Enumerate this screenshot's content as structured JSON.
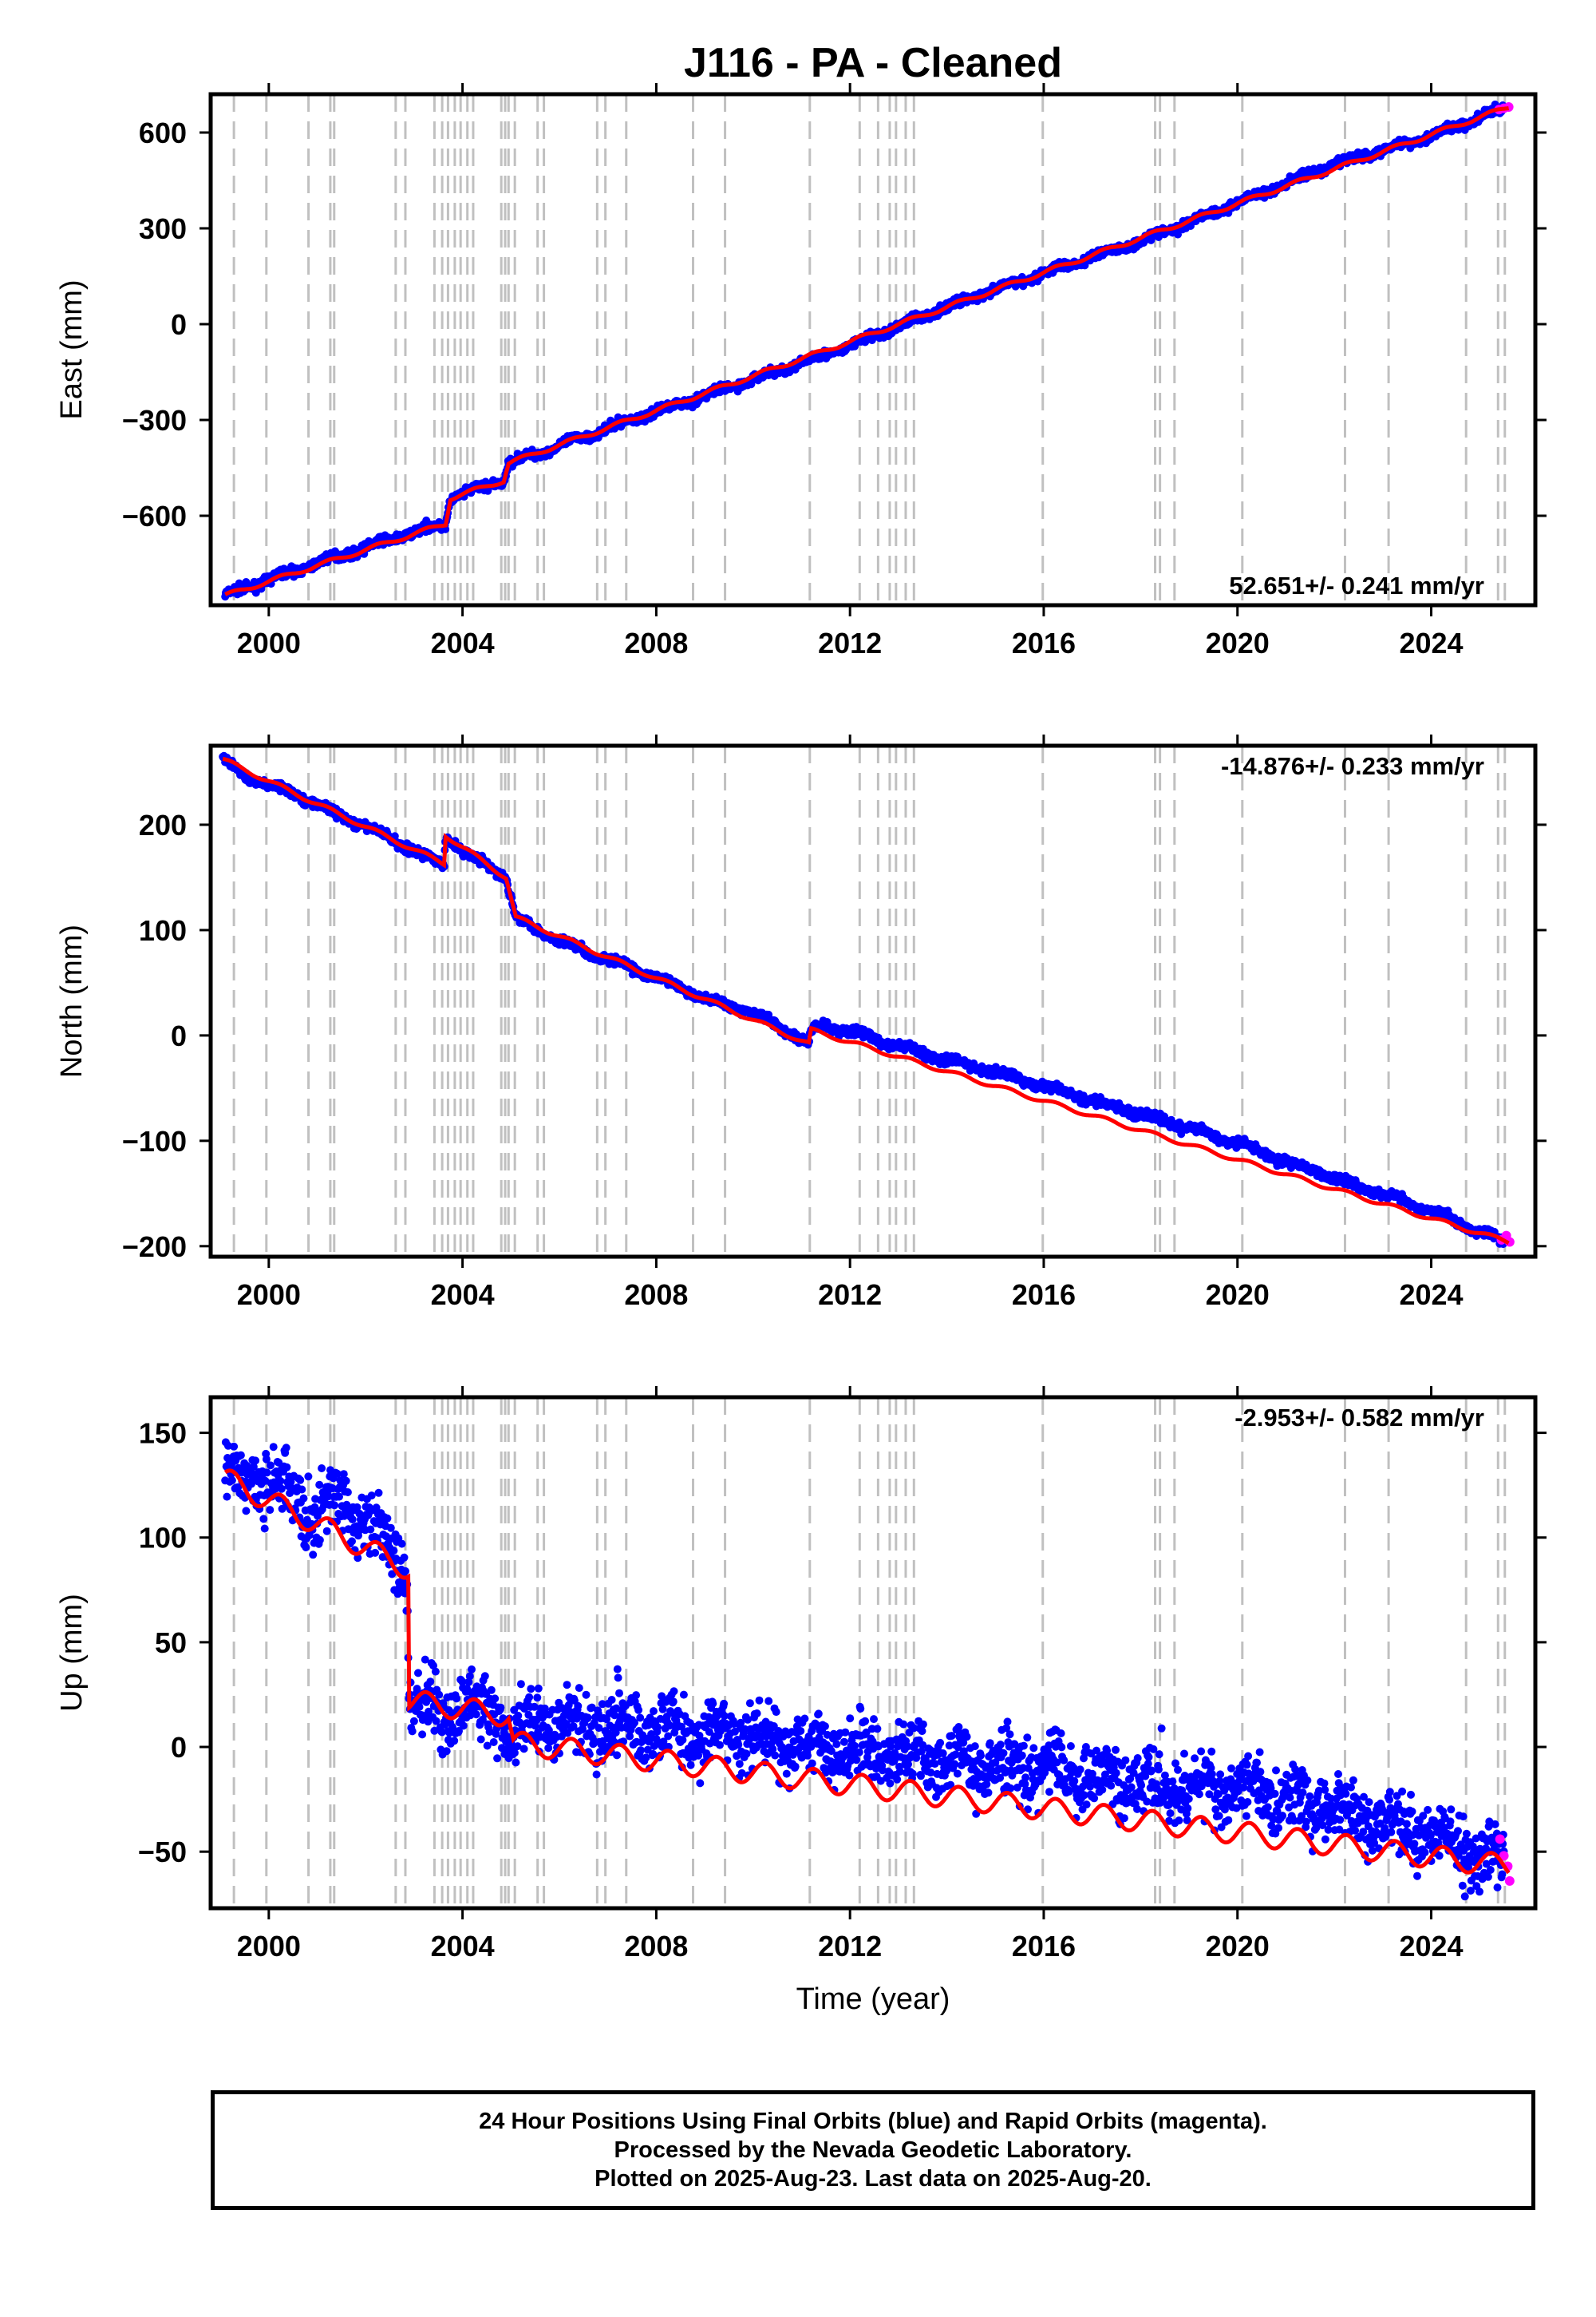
{
  "title": "J116  - PA - Cleaned",
  "colors": {
    "final_orbits": "#0000ff",
    "rapid_orbits": "#ff00ff",
    "model_fit": "#ff0000",
    "event_lines": "#c0c0c0",
    "frame": "#000000"
  },
  "chart_data": [
    {
      "type": "scatter",
      "component": "east",
      "title": "J116  - PA - Cleaned",
      "xlabel": "",
      "ylabel": "East (mm)",
      "xlim": [
        1998.8,
        2026.15
      ],
      "ylim": [
        -880,
        720
      ],
      "xticks": [
        2000,
        2004,
        2008,
        2012,
        2016,
        2020,
        2024
      ],
      "yticks": [
        -600,
        -300,
        0,
        300,
        600
      ],
      "ytick_labels": [
        "−600",
        "−300",
        "0",
        "300",
        "600"
      ],
      "rate_label": "52.651+/- 0.241 mm/yr",
      "rate_position": "bottom-right",
      "series": [
        {
          "color": "#0000ff",
          "marker": "dot",
          "x": [
            1999.1,
            2000.0,
            2001.0,
            2002.0,
            2003.0,
            2003.65,
            2003.75,
            2004.5,
            2004.85,
            2004.95,
            2006.0,
            2008.0,
            2010.0,
            2012.0,
            2014.0,
            2016.0,
            2018.0,
            2020.0,
            2022.0,
            2024.0,
            2025.5
          ],
          "y": [
            -850,
            -800,
            -748,
            -700,
            -650,
            -625,
            -545,
            -505,
            -490,
            -435,
            -380,
            -273,
            -173,
            -68,
            55,
            160,
            260,
            380,
            500,
            590,
            675
          ]
        },
        {
          "color": "#ff00ff",
          "marker": "dot",
          "x": [
            2025.4,
            2025.5,
            2025.6
          ],
          "y": [
            672,
            676,
            680
          ]
        }
      ],
      "fit": {
        "color": "#ff0000",
        "x": [
          1999.1,
          2003.65,
          2003.75,
          2004.85,
          2004.95,
          2025.6
        ],
        "y": [
          -850,
          -625,
          -545,
          -490,
          -435,
          680
        ]
      },
      "events": [
        1999.28,
        1999.95,
        2000.82,
        2001.27,
        2001.35,
        2002.62,
        2002.82,
        2003.42,
        2003.58,
        2003.7,
        2003.84,
        2003.96,
        2004.1,
        2004.22,
        2004.8,
        2004.88,
        2004.95,
        2005.08,
        2005.55,
        2005.68,
        2006.78,
        2006.95,
        2007.38,
        2008.76,
        2009.42,
        2011.17,
        2012.2,
        2012.58,
        2012.82,
        2012.95,
        2013.15,
        2013.32,
        2015.98,
        2018.3,
        2018.4,
        2018.7,
        2020.1,
        2022.22,
        2023.12,
        2024.72,
        2025.38,
        2025.52
      ]
    },
    {
      "type": "scatter",
      "component": "north",
      "xlabel": "",
      "ylabel": "North (mm)",
      "xlim": [
        1998.8,
        2026.15
      ],
      "ylim": [
        -210,
        275
      ],
      "xticks": [
        2000,
        2004,
        2008,
        2012,
        2016,
        2020,
        2024
      ],
      "yticks": [
        -200,
        -100,
        0,
        100,
        200
      ],
      "ytick_labels": [
        "−200",
        "−100",
        "0",
        "100",
        "200"
      ],
      "rate_label": "-14.876+/- 0.233 mm/yr",
      "rate_position": "top-right",
      "series": [
        {
          "color": "#0000ff",
          "marker": "dot",
          "x": [
            1999.05,
            1999.5,
            2000.5,
            2001.5,
            2002.5,
            2003.3,
            2003.62,
            2003.65,
            2004.0,
            2004.5,
            2004.9,
            2005.1,
            2005.5,
            2006.0,
            2007.0,
            2008.0,
            2009.0,
            2010.0,
            2011.15,
            2011.2,
            2011.5,
            2012.0,
            2013.0,
            2014.0,
            2015.0,
            2016.0,
            2017.0,
            2018.0,
            2019.0,
            2020.0,
            2021.0,
            2022.0,
            2023.0,
            2024.0,
            2025.5
          ],
          "y": [
            262,
            246,
            230,
            208,
            188,
            168,
            163,
            190,
            175,
            162,
            150,
            112,
            102,
            90,
            72,
            55,
            35,
            22,
            -8,
            5,
            9,
            4,
            -10,
            -23,
            -35,
            -48,
            -62,
            -75,
            -88,
            -102,
            -120,
            -135,
            -150,
            -167,
            -195
          ]
        },
        {
          "color": "#ff00ff",
          "marker": "dot",
          "x": [
            2025.45,
            2025.55,
            2025.62
          ],
          "y": [
            -194,
            -190,
            -196
          ]
        }
      ],
      "fit": {
        "color": "#ff0000",
        "x": [
          1999.05,
          2003.62,
          2003.65,
          2004.9,
          2005.1,
          2011.15,
          2011.2,
          2025.6
        ],
        "y": [
          262,
          163,
          190,
          150,
          112,
          -8,
          5,
          -196
        ]
      },
      "events": [
        1999.28,
        1999.95,
        2000.82,
        2001.27,
        2001.35,
        2002.62,
        2002.82,
        2003.42,
        2003.58,
        2003.7,
        2003.84,
        2003.96,
        2004.1,
        2004.22,
        2004.8,
        2004.88,
        2004.95,
        2005.08,
        2005.55,
        2005.68,
        2006.78,
        2006.95,
        2007.38,
        2008.76,
        2009.42,
        2011.17,
        2012.2,
        2012.58,
        2012.82,
        2012.95,
        2013.15,
        2013.32,
        2015.98,
        2018.3,
        2018.4,
        2018.7,
        2020.1,
        2022.22,
        2023.12,
        2024.72,
        2025.38,
        2025.52
      ]
    },
    {
      "type": "scatter",
      "component": "up",
      "xlabel": "Time (year)",
      "ylabel": "Up (mm)",
      "xlim": [
        1998.8,
        2026.15
      ],
      "ylim": [
        -77,
        167
      ],
      "xticks": [
        2000,
        2004,
        2008,
        2012,
        2016,
        2020,
        2024
      ],
      "yticks": [
        -50,
        0,
        50,
        100,
        150
      ],
      "ytick_labels": [
        "−50",
        "0",
        "50",
        "100",
        "150"
      ],
      "rate_label": "-2.953+/- 0.582 mm/yr",
      "rate_position": "top-right",
      "series": [
        {
          "color": "#0000ff",
          "marker": "dot",
          "x": [
            1999.1,
            1999.6,
            2000.4,
            2001.0,
            2001.6,
            2002.2,
            2002.85,
            2002.9,
            2003.5,
            2004.0,
            2004.8,
            2005.0,
            2005.5,
            2006.5,
            2007.5,
            2008.5,
            2009.5,
            2010.5,
            2011.5,
            2012.5,
            2013.5,
            2014.5,
            2015.5,
            2016.5,
            2017.5,
            2018.5,
            2019.5,
            2020.5,
            2021.5,
            2022.5,
            2023.5,
            2024.5,
            2025.5
          ],
          "y": [
            128,
            130,
            122,
            110,
            118,
            100,
            88,
            22,
            15,
            20,
            15,
            2,
            12,
            12,
            11,
            8,
            5,
            2,
            0,
            -2,
            -5,
            -8,
            -10,
            -12,
            -15,
            -18,
            -20,
            -22,
            -27,
            -32,
            -38,
            -47,
            -55
          ]
        },
        {
          "color": "#ff00ff",
          "marker": "dot",
          "x": [
            2025.42,
            2025.5,
            2025.58,
            2025.62
          ],
          "y": [
            -44,
            -52,
            -57,
            -64
          ]
        }
      ],
      "fit": {
        "color": "#ff0000",
        "x": [
          1999.1,
          2002.88,
          2002.9,
          2004.95,
          2005.05,
          2025.6
        ],
        "y": [
          128,
          85,
          22,
          15,
          2,
          -57
        ]
      },
      "events": [
        1999.28,
        1999.95,
        2000.82,
        2001.27,
        2001.35,
        2002.62,
        2002.82,
        2003.42,
        2003.58,
        2003.7,
        2003.84,
        2003.96,
        2004.1,
        2004.22,
        2004.8,
        2004.88,
        2004.95,
        2005.08,
        2005.55,
        2005.68,
        2006.78,
        2006.95,
        2007.38,
        2008.76,
        2009.42,
        2011.17,
        2012.2,
        2012.58,
        2012.82,
        2012.95,
        2013.15,
        2013.32,
        2015.98,
        2018.3,
        2018.4,
        2018.7,
        2020.1,
        2022.22,
        2023.12,
        2024.72,
        2025.38,
        2025.52
      ]
    }
  ],
  "caption": {
    "line1": "24 Hour Positions Using Final Orbits (blue) and Rapid Orbits (magenta).",
    "line2": "Processed by the Nevada Geodetic Laboratory.",
    "line3": "Plotted on 2025-Aug-23. Last data on 2025-Aug-20."
  }
}
